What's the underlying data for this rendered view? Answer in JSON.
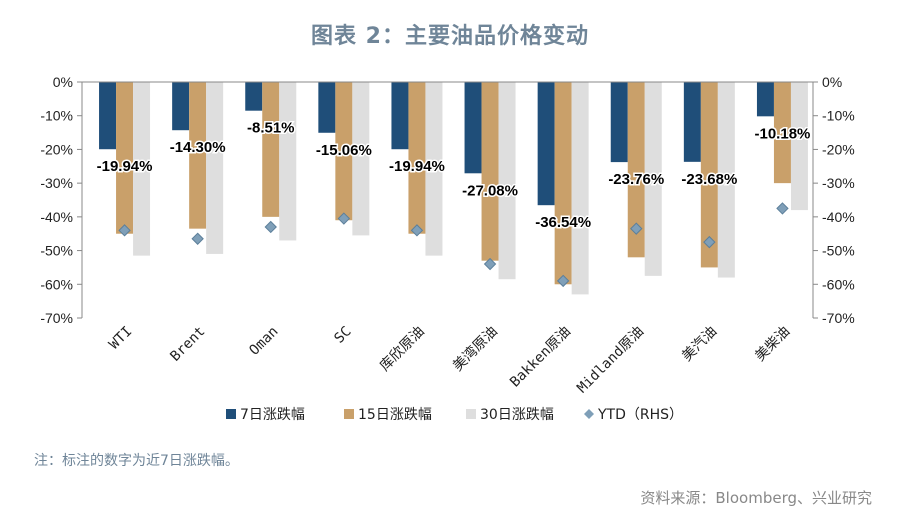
{
  "chart_data": {
    "type": "bar",
    "title": "图表 2：主要油品价格变动",
    "categories": [
      "WTI",
      "Brent",
      "Oman",
      "SC",
      "库欣原油",
      "美湾原油",
      "Bakken原油",
      "Midland原油",
      "美汽油",
      "美柴油"
    ],
    "series": [
      {
        "name": "7日涨跌幅",
        "color": "#1f4e79",
        "values": [
          -19.94,
          -14.3,
          -8.51,
          -15.06,
          -19.94,
          -27.08,
          -36.54,
          -23.76,
          -23.68,
          -10.18
        ]
      },
      {
        "name": "15日涨跌幅",
        "color": "#c9a06a",
        "values": [
          -45.0,
          -43.5,
          -40.0,
          -41.0,
          -45.0,
          -53.0,
          -60.0,
          -52.0,
          -55.0,
          -30.0
        ]
      },
      {
        "name": "30日涨跌幅",
        "color": "#dedede",
        "values": [
          -51.5,
          -51.0,
          -47.0,
          -45.5,
          -51.5,
          -58.5,
          -63.0,
          -57.5,
          -58.0,
          -38.0
        ]
      },
      {
        "name": "YTD（RHS）",
        "type": "scatter",
        "color": "#7f9fb8",
        "values": [
          -44.0,
          -46.5,
          -43.0,
          -40.5,
          -44.0,
          -54.0,
          -59.0,
          -43.5,
          -47.5,
          -37.5
        ]
      }
    ],
    "data_labels": [
      "-19.94%",
      "-14.30%",
      "-8.51%",
      "-15.06%",
      "-19.94%",
      "-27.08%",
      "-36.54%",
      "-23.76%",
      "-23.68%",
      "-10.18%"
    ],
    "y_ticks": [
      "0%",
      "-10%",
      "-20%",
      "-30%",
      "-40%",
      "-50%",
      "-60%",
      "-70%"
    ],
    "ylim": [
      -70,
      0
    ],
    "y2lim": [
      -70,
      0
    ],
    "legend_position": "bottom"
  },
  "note": "注：标注的数字为近7日涨跌幅。",
  "source": "资料来源：Bloomberg、兴业研究"
}
